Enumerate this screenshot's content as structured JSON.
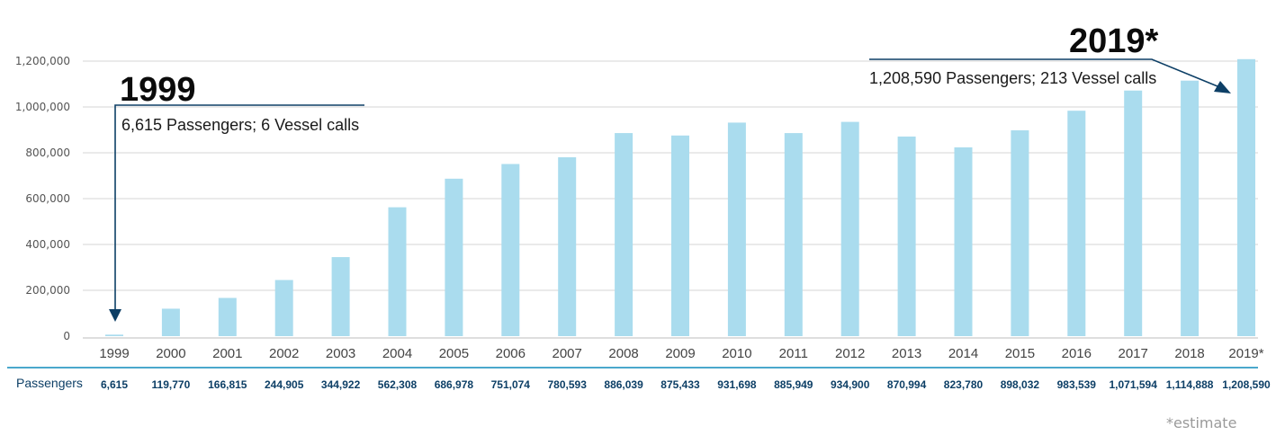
{
  "chart_data": {
    "type": "bar",
    "categories": [
      "1999",
      "2000",
      "2001",
      "2002",
      "2003",
      "2004",
      "2005",
      "2006",
      "2007",
      "2008",
      "2009",
      "2010",
      "2011",
      "2012",
      "2013",
      "2014",
      "2015",
      "2016",
      "2017",
      "2018",
      "2019*"
    ],
    "values": [
      6615,
      119770,
      166815,
      244905,
      344922,
      562308,
      686978,
      751074,
      780593,
      886039,
      875433,
      931698,
      885949,
      934900,
      870994,
      823780,
      898032,
      983539,
      1071594,
      1114888,
      1208590
    ],
    "value_labels": [
      "6,615",
      "119,770",
      "166,815",
      "244,905",
      "344,922",
      "562,308",
      "686,978",
      "751,074",
      "780,593",
      "886,039",
      "875,433",
      "931,698",
      "885,949",
      "934,900",
      "870,994",
      "823,780",
      "898,032",
      "983,539",
      "1,071,594",
      "1,114,888",
      "1,208,590"
    ],
    "row_label": "Passengers",
    "ylim": [
      0,
      1200000
    ],
    "yticks": [
      0,
      200000,
      400000,
      600000,
      800000,
      1000000,
      1200000
    ],
    "ytick_labels": [
      "0",
      "200,000",
      "400,000",
      "600,000",
      "800,000",
      "1,000,000",
      "1,200,000"
    ],
    "grid": true,
    "bar_color": "#aadcee",
    "grid_color": "#d4d4d4",
    "axis_color": "#4aa8cc",
    "label_color": "#0d3f66",
    "annotations": [
      {
        "year": "1999",
        "text": "6,615 Passengers; 6 Vessel calls",
        "target_index": 0
      },
      {
        "year": "2019*",
        "text": "1,208,590 Passengers;  213 Vessel calls",
        "target_index": 20
      }
    ],
    "footnote": "*estimate"
  }
}
